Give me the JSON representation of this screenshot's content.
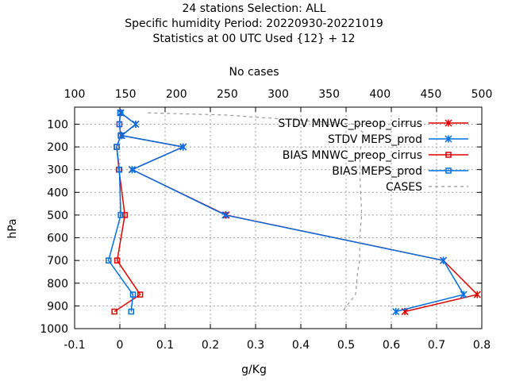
{
  "chart_data": {
    "type": "line",
    "title_lines": [
      "24 stations Selection: ALL",
      "Specific humidity  Period: 20220930-20221019",
      "Statistics at 00 UTC  Used {12} + 12"
    ],
    "xlabel": "g/Kg",
    "ylabel": "hPa",
    "x2label": "No cases",
    "xlim": [
      -0.1,
      0.8
    ],
    "x2lim": [
      100,
      500
    ],
    "ylim": [
      1000,
      25
    ],
    "xticks": [
      "-0.1",
      "0",
      "0.1",
      "0.2",
      "0.3",
      "0.4",
      "0.5",
      "0.6",
      "0.7",
      "0.8"
    ],
    "x2ticks": [
      "100",
      "150",
      "200",
      "250",
      "300",
      "350",
      "400",
      "450",
      "500"
    ],
    "yticks": [
      "100",
      "200",
      "300",
      "400",
      "500",
      "600",
      "700",
      "800",
      "900",
      "1000"
    ],
    "grid": true,
    "legend_position": "top-right",
    "series": [
      {
        "name": "STDV MNWC_preop_cirrus",
        "color": "#e00000",
        "marker": "x",
        "axis": "x",
        "x": [
          0.002,
          0.035,
          0.004,
          0.14,
          0.027,
          0.235,
          0.715,
          0.79,
          0.63
        ],
        "y": [
          50,
          100,
          150,
          200,
          300,
          500,
          700,
          850,
          925
        ]
      },
      {
        "name": "STDV MEPS_prod",
        "color": "#0070e0",
        "marker": "x",
        "axis": "x",
        "x": [
          0.002,
          0.035,
          0.004,
          0.14,
          0.027,
          0.233,
          0.715,
          0.76,
          0.61
        ],
        "y": [
          50,
          100,
          150,
          200,
          300,
          500,
          700,
          850,
          925
        ]
      },
      {
        "name": "BIAS MNWC_preop_cirrus",
        "color": "#e00000",
        "marker": "square",
        "axis": "x",
        "x": [
          0.001,
          -0.001,
          0.002,
          -0.007,
          -0.002,
          0.011,
          -0.006,
          0.045,
          -0.012
        ],
        "y": [
          50,
          100,
          150,
          200,
          300,
          500,
          700,
          850,
          925
        ]
      },
      {
        "name": "BIAS MEPS_prod",
        "color": "#0070e0",
        "marker": "square",
        "axis": "x",
        "x": [
          0.001,
          -0.001,
          0.002,
          -0.007,
          -0.001,
          0.002,
          -0.025,
          0.029,
          0.025
        ],
        "y": [
          50,
          100,
          150,
          200,
          300,
          500,
          700,
          850,
          925
        ]
      },
      {
        "name": "CASES",
        "color": "#999999",
        "marker": "none",
        "dash": true,
        "axis": "x2",
        "x": [
          172,
          250,
          375,
          386,
          381,
          380,
          381,
          382,
          380,
          380,
          378,
          377,
          376,
          363
        ],
        "y": [
          50,
          60,
          100,
          150,
          200,
          300,
          400,
          500,
          600,
          700,
          750,
          800,
          850,
          925
        ]
      }
    ]
  }
}
